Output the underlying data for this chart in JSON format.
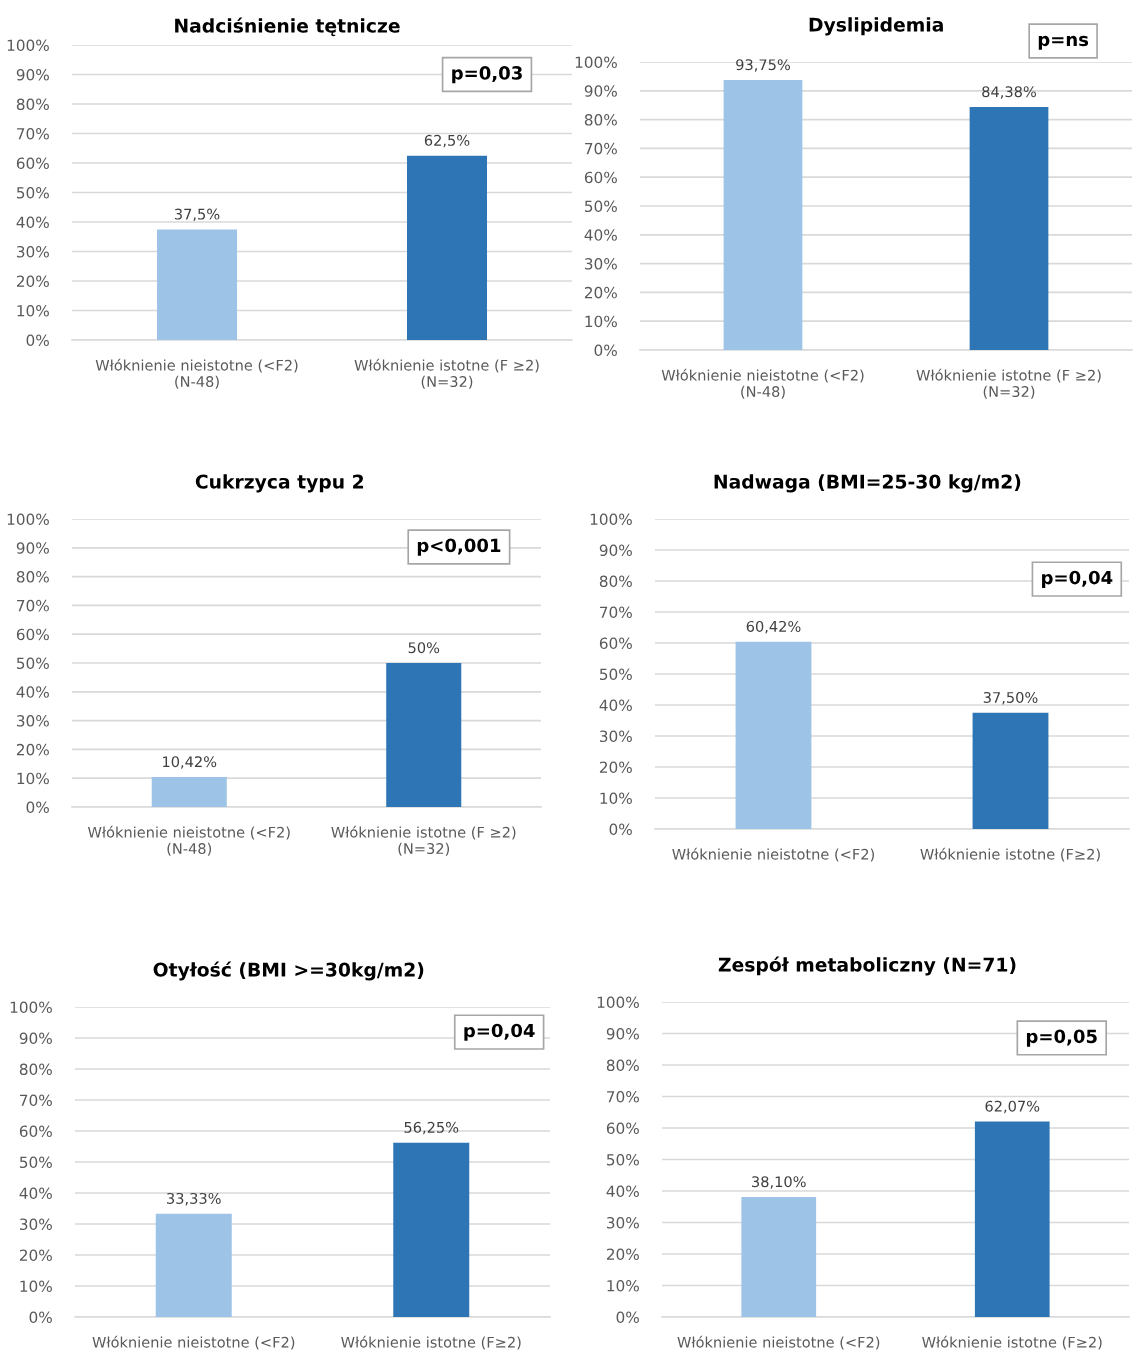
{
  "chart_data": [
    {
      "type": "bar",
      "title": "Nadciśnienie tętnicze",
      "categories": [
        "Włóknienie nieistotne (<F2)\n(N-48)",
        "Włóknienie istotne (F ≥2)\n(N=32)"
      ],
      "values": [
        37.5,
        62.5
      ],
      "colors": [
        "#9dc3e6",
        "#2e75b6"
      ],
      "value_labels": [
        "37,5%",
        "62,5%"
      ],
      "ylim": [
        0,
        100
      ],
      "yticks": [
        {
          "value": 0,
          "label": "0%"
        },
        {
          "value": 10,
          "label": "10%"
        },
        {
          "value": 20,
          "label": "20%"
        },
        {
          "value": 30,
          "label": "30%"
        },
        {
          "value": 40,
          "label": "40%"
        },
        {
          "value": 50,
          "label": "50%"
        },
        {
          "value": 60,
          "label": "60%"
        },
        {
          "value": 70,
          "label": "70%"
        },
        {
          "value": 80,
          "label": "80%"
        },
        {
          "value": 90,
          "label": "90%"
        },
        {
          "value": 100,
          "label": "100%"
        }
      ],
      "grid": "y",
      "annotations": [
        "p=0,03"
      ]
    },
    {
      "type": "bar",
      "title": "Dyslipidemia",
      "categories": [
        "Włóknienie nieistotne (<F2)\n(N-48)",
        "Włóknienie istotne (F ≥2)\n(N=32)"
      ],
      "values": [
        93.75,
        84.38
      ],
      "colors": [
        "#9dc3e6",
        "#2e75b6"
      ],
      "value_labels": [
        "93,75%",
        "84,38%"
      ],
      "ylim": [
        0,
        100
      ],
      "yticks": [
        {
          "value": 0,
          "label": "0%"
        },
        {
          "value": 10,
          "label": "10%"
        },
        {
          "value": 20,
          "label": "20%"
        },
        {
          "value": 30,
          "label": "30%"
        },
        {
          "value": 40,
          "label": "40%"
        },
        {
          "value": 50,
          "label": "50%"
        },
        {
          "value": 60,
          "label": "60%"
        },
        {
          "value": 70,
          "label": "70%"
        },
        {
          "value": 80,
          "label": "80%"
        },
        {
          "value": 90,
          "label": "90%"
        },
        {
          "value": 100,
          "label": "100%"
        }
      ],
      "grid": "y",
      "annotations": [
        "p=ns"
      ]
    },
    {
      "type": "bar",
      "title": "Cukrzyca typu 2",
      "categories": [
        "Włóknienie nieistotne (<F2)\n(N-48)",
        "Włóknienie istotne (F ≥2)\n(N=32)"
      ],
      "values": [
        10.42,
        50
      ],
      "colors": [
        "#9dc3e6",
        "#2e75b6"
      ],
      "value_labels": [
        "10,42%",
        "50%"
      ],
      "ylim": [
        0,
        100
      ],
      "yticks": [
        {
          "value": 0,
          "label": "0%"
        },
        {
          "value": 10,
          "label": "10%"
        },
        {
          "value": 20,
          "label": "20%"
        },
        {
          "value": 30,
          "label": "30%"
        },
        {
          "value": 40,
          "label": "40%"
        },
        {
          "value": 50,
          "label": "50%"
        },
        {
          "value": 60,
          "label": "60%"
        },
        {
          "value": 70,
          "label": "70%"
        },
        {
          "value": 80,
          "label": "80%"
        },
        {
          "value": 90,
          "label": "90%"
        },
        {
          "value": 100,
          "label": "100%"
        }
      ],
      "grid": "y",
      "annotations": [
        "p<0,001"
      ]
    },
    {
      "type": "bar",
      "title": "Nadwaga (BMI=25-30 kg/m2)",
      "categories": [
        "Włóknienie nieistotne (<F2)",
        "Włóknienie istotne (F≥2)"
      ],
      "values": [
        60.42,
        37.5
      ],
      "colors": [
        "#9dc3e6",
        "#2e75b6"
      ],
      "value_labels": [
        "60,42%",
        "37,50%"
      ],
      "ylim": [
        0,
        100
      ],
      "yticks": [
        {
          "value": 0,
          "label": "0%"
        },
        {
          "value": 10,
          "label": "10%"
        },
        {
          "value": 20,
          "label": "20%"
        },
        {
          "value": 30,
          "label": "30%"
        },
        {
          "value": 40,
          "label": "40%"
        },
        {
          "value": 50,
          "label": "50%"
        },
        {
          "value": 60,
          "label": "60%"
        },
        {
          "value": 70,
          "label": "70%"
        },
        {
          "value": 80,
          "label": "80%"
        },
        {
          "value": 90,
          "label": "90%"
        },
        {
          "value": 100,
          "label": "100%"
        }
      ],
      "grid": "y",
      "annotations": [
        "p=0,04"
      ]
    },
    {
      "type": "bar",
      "title": "Otyłość (BMI >=30kg/m2)",
      "categories": [
        "Włóknienie nieistotne (<F2)",
        "Włóknienie istotne (F≥2)"
      ],
      "values": [
        33.33,
        56.25
      ],
      "colors": [
        "#9dc3e6",
        "#2e75b6"
      ],
      "value_labels": [
        "33,33%",
        "56,25%"
      ],
      "ylim": [
        0,
        100
      ],
      "yticks": [
        {
          "value": 0,
          "label": "0%"
        },
        {
          "value": 10,
          "label": "10%"
        },
        {
          "value": 20,
          "label": "20%"
        },
        {
          "value": 30,
          "label": "30%"
        },
        {
          "value": 40,
          "label": "40%"
        },
        {
          "value": 50,
          "label": "50%"
        },
        {
          "value": 60,
          "label": "60%"
        },
        {
          "value": 70,
          "label": "70%"
        },
        {
          "value": 80,
          "label": "80%"
        },
        {
          "value": 90,
          "label": "90%"
        },
        {
          "value": 100,
          "label": "100%"
        }
      ],
      "grid": "y",
      "annotations": [
        "p=0,04"
      ]
    },
    {
      "type": "bar",
      "title": "Zespół metaboliczny (N=71)",
      "categories": [
        "Włóknienie nieistotne (<F2)",
        "Włóknienie istotne (F≥2)"
      ],
      "values": [
        38.1,
        62.07
      ],
      "colors": [
        "#9dc3e6",
        "#2e75b6"
      ],
      "value_labels": [
        "38,10%",
        "62,07%"
      ],
      "ylim": [
        0,
        100
      ],
      "yticks": [
        {
          "value": 0,
          "label": "0%"
        },
        {
          "value": 10,
          "label": "10%"
        },
        {
          "value": 20,
          "label": "20%"
        },
        {
          "value": 30,
          "label": "30%"
        },
        {
          "value": 40,
          "label": "40%"
        },
        {
          "value": 50,
          "label": "50%"
        },
        {
          "value": 60,
          "label": "60%"
        },
        {
          "value": 70,
          "label": "70%"
        },
        {
          "value": 80,
          "label": "80%"
        },
        {
          "value": 90,
          "label": "90%"
        },
        {
          "value": 100,
          "label": "100%"
        }
      ],
      "grid": "y",
      "annotations": [
        "p=0,05"
      ]
    }
  ]
}
